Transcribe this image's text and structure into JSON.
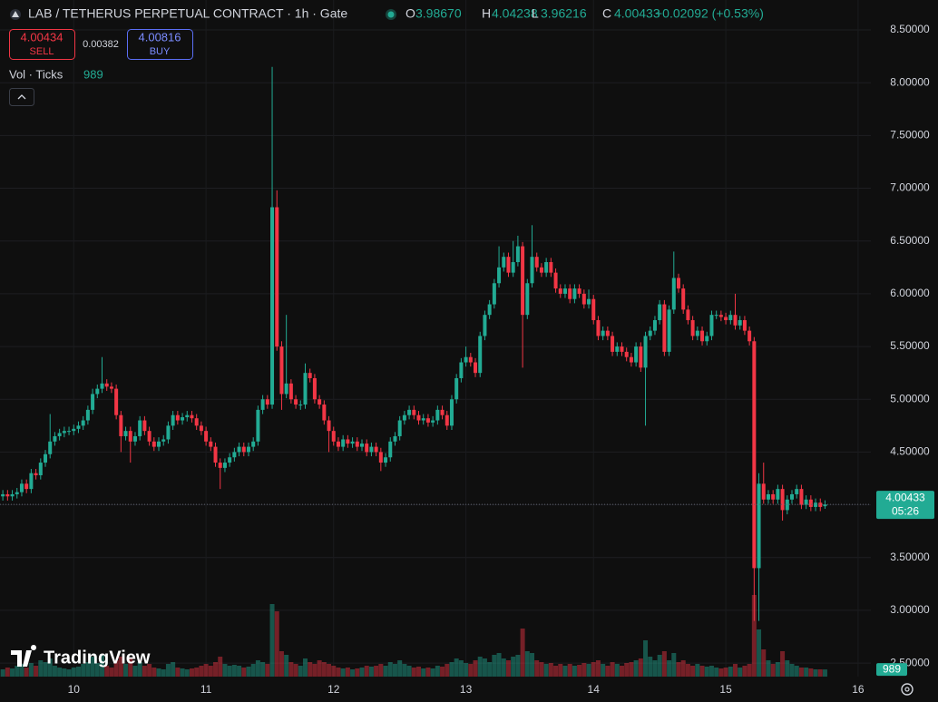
{
  "header": {
    "title": "LAB / TETHERUS PERPETUAL CONTRACT · 1h · Gate",
    "o_label": "O",
    "o_value": "3.98670",
    "h_label": "H",
    "h_value": "4.04238",
    "l_label": "L",
    "l_value": "3.96216",
    "c_label": "C",
    "c_value": "4.00433",
    "change": "+0.02092 (+0.53%)"
  },
  "trade": {
    "sell_price": "4.00434",
    "sell_label": "SELL",
    "spread": "0.00382",
    "buy_price": "4.00816",
    "buy_label": "BUY"
  },
  "indicator": {
    "label": "Vol · Ticks"
  },
  "branding": "TradingView",
  "chart_data": {
    "type": "candlestick",
    "up_color": "#22ab94",
    "down_color": "#f23645",
    "grid": true,
    "open": [
      4.08,
      4.1,
      4.08,
      4.1,
      4.12,
      4.2,
      4.15,
      4.3,
      4.28,
      4.4,
      4.48,
      4.6,
      4.65,
      4.68,
      4.7,
      4.7,
      4.72,
      4.75,
      4.8,
      4.9,
      5.05,
      5.1,
      5.15,
      5.12,
      5.1,
      4.85,
      4.65,
      4.7,
      4.6,
      4.65,
      4.8,
      4.7,
      4.6,
      4.55,
      4.6,
      4.62,
      4.75,
      4.85,
      4.8,
      4.83,
      4.85,
      4.82,
      4.75,
      4.7,
      4.6,
      4.55,
      4.4,
      4.35,
      4.4,
      4.45,
      4.5,
      4.55,
      4.5,
      4.55,
      4.6,
      4.9,
      5.0,
      4.95,
      6.82,
      5.5,
      5.05,
      5.15,
      5.0,
      4.95,
      4.95,
      5.25,
      5.2,
      5.0,
      4.95,
      4.8,
      4.7,
      4.6,
      4.55,
      4.62,
      4.58,
      4.6,
      4.55,
      4.58,
      4.5,
      4.55,
      4.5,
      4.4,
      4.45,
      4.6,
      4.65,
      4.8,
      4.85,
      4.9,
      4.85,
      4.8,
      4.82,
      4.78,
      4.8,
      4.9,
      4.85,
      4.75,
      5.0,
      5.2,
      5.35,
      5.4,
      5.35,
      5.25,
      5.6,
      5.8,
      5.9,
      6.1,
      6.25,
      6.35,
      6.2,
      6.3,
      6.45,
      5.8,
      6.1,
      6.35,
      6.25,
      6.2,
      6.3,
      6.2,
      6.05,
      6.0,
      6.05,
      5.95,
      6.05,
      6.0,
      5.9,
      5.95,
      5.75,
      5.6,
      5.65,
      5.6,
      5.45,
      5.5,
      5.45,
      5.4,
      5.35,
      5.5,
      5.3,
      5.6,
      5.65,
      5.75,
      5.9,
      5.45,
      5.85,
      6.15,
      6.05,
      5.85,
      5.75,
      5.6,
      5.65,
      5.55,
      5.6,
      5.8,
      5.8,
      5.78,
      5.75,
      5.8,
      5.7,
      5.75,
      5.65,
      5.55,
      3.4,
      4.2,
      4.05,
      4.1,
      4.05,
      4.15,
      3.95,
      4.05,
      4.1,
      4.15,
      4.0,
      4.05,
      3.98,
      4.02,
      3.9867
    ],
    "high": [
      4.14,
      4.14,
      4.14,
      4.16,
      4.24,
      4.24,
      4.34,
      4.34,
      4.44,
      4.52,
      4.86,
      4.69,
      4.72,
      4.74,
      4.74,
      4.76,
      4.79,
      4.84,
      4.94,
      5.1,
      5.14,
      5.4,
      5.19,
      5.16,
      5.14,
      4.89,
      4.74,
      4.74,
      4.69,
      4.84,
      4.84,
      4.74,
      4.64,
      4.64,
      4.66,
      4.79,
      4.89,
      4.89,
      4.87,
      4.89,
      4.89,
      4.86,
      4.79,
      4.74,
      4.64,
      4.59,
      4.44,
      4.44,
      4.49,
      4.54,
      4.59,
      4.59,
      4.59,
      4.64,
      4.94,
      5.04,
      5.04,
      8.15,
      6.98,
      5.55,
      5.8,
      5.19,
      5.04,
      4.99,
      5.34,
      5.29,
      5.24,
      5.04,
      4.99,
      4.84,
      4.74,
      4.64,
      4.66,
      4.66,
      4.64,
      4.64,
      4.62,
      4.62,
      4.59,
      4.59,
      4.54,
      4.49,
      4.64,
      4.69,
      4.84,
      4.89,
      4.94,
      4.94,
      4.89,
      4.86,
      4.86,
      4.84,
      4.94,
      4.94,
      4.89,
      5.04,
      5.24,
      5.39,
      5.5,
      5.44,
      5.39,
      5.64,
      5.84,
      5.94,
      6.14,
      6.45,
      6.39,
      6.39,
      6.5,
      6.55,
      6.49,
      6.14,
      6.65,
      6.39,
      6.29,
      6.34,
      6.34,
      6.24,
      6.09,
      6.09,
      6.09,
      6.09,
      6.09,
      6.04,
      6.04,
      5.99,
      5.79,
      5.69,
      5.69,
      5.64,
      5.54,
      5.54,
      5.49,
      5.44,
      5.54,
      5.54,
      5.64,
      5.69,
      5.79,
      5.94,
      5.94,
      5.89,
      6.4,
      6.19,
      6.09,
      5.89,
      5.79,
      5.69,
      5.69,
      5.64,
      5.84,
      5.84,
      5.84,
      5.82,
      5.84,
      6.0,
      5.79,
      5.79,
      5.69,
      5.59,
      4.3,
      4.4,
      4.14,
      4.14,
      4.19,
      4.19,
      4.09,
      4.14,
      4.19,
      4.19,
      4.09,
      4.09,
      4.06,
      4.06,
      4.04238
    ],
    "low": [
      4.04,
      4.04,
      4.04,
      4.06,
      4.08,
      4.11,
      4.11,
      4.24,
      4.24,
      4.36,
      4.44,
      4.56,
      4.61,
      4.64,
      4.66,
      4.66,
      4.68,
      4.71,
      4.76,
      4.86,
      5.01,
      5.06,
      5.08,
      5.06,
      4.81,
      4.5,
      4.61,
      4.4,
      4.56,
      4.61,
      4.66,
      4.56,
      4.51,
      4.51,
      4.56,
      4.58,
      4.71,
      4.76,
      4.76,
      4.79,
      4.78,
      4.71,
      4.66,
      4.56,
      4.51,
      4.36,
      4.15,
      4.31,
      4.36,
      4.41,
      4.46,
      4.46,
      4.46,
      4.51,
      4.56,
      4.86,
      4.91,
      4.91,
      5.46,
      4.9,
      5.01,
      4.96,
      4.91,
      4.9,
      4.91,
      5.16,
      4.96,
      4.91,
      4.76,
      4.5,
      4.56,
      4.51,
      4.51,
      4.54,
      4.54,
      4.51,
      4.51,
      4.46,
      4.46,
      4.46,
      4.32,
      4.36,
      4.41,
      4.56,
      4.61,
      4.76,
      4.81,
      4.81,
      4.76,
      4.76,
      4.74,
      4.74,
      4.76,
      4.81,
      4.71,
      4.71,
      4.96,
      5.16,
      5.31,
      5.31,
      5.21,
      5.21,
      5.56,
      5.76,
      5.86,
      6.06,
      6.21,
      6.16,
      6.16,
      6.26,
      5.3,
      5.76,
      6.06,
      6.21,
      6.16,
      6.16,
      6.16,
      6.01,
      5.96,
      5.96,
      5.91,
      5.91,
      5.96,
      5.86,
      5.86,
      5.71,
      5.56,
      5.56,
      5.56,
      5.41,
      5.41,
      5.41,
      5.36,
      5.31,
      5.31,
      5.26,
      4.75,
      5.56,
      5.61,
      5.71,
      5.41,
      5.41,
      5.81,
      6.01,
      5.81,
      5.71,
      5.56,
      5.56,
      5.51,
      5.51,
      5.56,
      5.76,
      5.74,
      5.71,
      5.71,
      5.66,
      5.66,
      5.61,
      5.51,
      2.9,
      2.9,
      4.01,
      4.01,
      4.01,
      4.01,
      3.85,
      3.91,
      4.01,
      4.06,
      3.96,
      3.96,
      3.94,
      3.94,
      3.94,
      3.96216
    ],
    "close": [
      4.1,
      4.08,
      4.1,
      4.12,
      4.2,
      4.15,
      4.3,
      4.28,
      4.4,
      4.48,
      4.6,
      4.65,
      4.68,
      4.7,
      4.7,
      4.72,
      4.75,
      4.8,
      4.9,
      5.05,
      5.1,
      5.15,
      5.12,
      5.1,
      4.85,
      4.65,
      4.7,
      4.6,
      4.65,
      4.8,
      4.7,
      4.6,
      4.55,
      4.6,
      4.62,
      4.75,
      4.85,
      4.8,
      4.83,
      4.85,
      4.82,
      4.75,
      4.7,
      4.6,
      4.55,
      4.4,
      4.35,
      4.4,
      4.45,
      4.5,
      4.55,
      4.5,
      4.55,
      4.6,
      4.9,
      5.0,
      4.95,
      6.82,
      5.5,
      5.05,
      5.15,
      5.0,
      4.95,
      4.95,
      5.25,
      5.2,
      5.0,
      4.95,
      4.8,
      4.7,
      4.6,
      4.55,
      4.62,
      4.58,
      4.6,
      4.55,
      4.58,
      4.5,
      4.55,
      4.5,
      4.4,
      4.45,
      4.6,
      4.65,
      4.8,
      4.85,
      4.9,
      4.85,
      4.8,
      4.82,
      4.78,
      4.8,
      4.9,
      4.85,
      4.75,
      5.0,
      5.2,
      5.35,
      5.4,
      5.35,
      5.25,
      5.6,
      5.8,
      5.9,
      6.1,
      6.25,
      6.35,
      6.2,
      6.3,
      6.45,
      5.8,
      6.1,
      6.35,
      6.25,
      6.2,
      6.3,
      6.2,
      6.05,
      6.0,
      6.05,
      5.95,
      6.05,
      6.0,
      5.9,
      5.95,
      5.75,
      5.6,
      5.65,
      5.6,
      5.45,
      5.5,
      5.45,
      5.4,
      5.35,
      5.5,
      5.3,
      5.6,
      5.65,
      5.75,
      5.9,
      5.45,
      5.85,
      6.15,
      6.05,
      5.85,
      5.75,
      5.6,
      5.65,
      5.55,
      5.6,
      5.8,
      5.8,
      5.78,
      5.75,
      5.8,
      5.7,
      5.75,
      5.65,
      5.55,
      3.4,
      4.2,
      4.05,
      4.1,
      4.05,
      4.15,
      3.95,
      4.05,
      4.1,
      4.15,
      4.0,
      4.05,
      3.98,
      4.02,
      3.98,
      4.00433
    ],
    "volume": [
      1000,
      1250,
      1125,
      1500,
      1750,
      1250,
      1875,
      1500,
      2250,
      2000,
      2500,
      1500,
      1250,
      1125,
      1000,
      1250,
      1375,
      1750,
      2000,
      2750,
      1875,
      3125,
      1500,
      1250,
      2250,
      2750,
      1750,
      2500,
      1500,
      2000,
      1500,
      1750,
      1250,
      1125,
      1000,
      1750,
      2000,
      1250,
      1125,
      1000,
      1125,
      1250,
      1500,
      1750,
      1500,
      2000,
      2750,
      1750,
      1500,
      1625,
      1500,
      1250,
      1375,
      1750,
      2250,
      2000,
      1750,
      10000,
      9000,
      3500,
      3000,
      2000,
      1750,
      1500,
      2500,
      2000,
      1750,
      2250,
      2000,
      1750,
      1500,
      1250,
      1125,
      1250,
      1000,
      1125,
      1250,
      1500,
      1375,
      1500,
      1750,
      1500,
      2000,
      1750,
      2250,
      1750,
      1500,
      1250,
      1375,
      1125,
      1250,
      1125,
      1500,
      1375,
      1750,
      2000,
      2500,
      2250,
      1875,
      1750,
      2250,
      2750,
      2500,
      2000,
      3000,
      3250,
      2500,
      2250,
      2750,
      3000,
      6625,
      3500,
      3250,
      2250,
      2000,
      1750,
      1875,
      1500,
      1750,
      1500,
      1750,
      1500,
      1625,
      1875,
      1750,
      2000,
      2250,
      1750,
      1500,
      2000,
      1750,
      1500,
      1875,
      2000,
      2250,
      2500,
      5000,
      2750,
      2250,
      3000,
      3500,
      2250,
      3250,
      2000,
      2250,
      1750,
      1500,
      1750,
      1500,
      1375,
      1500,
      1250,
      1125,
      1250,
      1375,
      1750,
      1250,
      1500,
      1750,
      11250,
      6500,
      3750,
      2250,
      1750,
      2000,
      3500,
      2250,
      1750,
      1500,
      1250,
      1250,
      1125,
      1000,
      1000,
      989
    ],
    "countdown": "05:26",
    "ylim": [
      2.372,
      8.784
    ],
    "yticks": [
      {
        "value": 2.5,
        "label": "2.50000"
      },
      {
        "value": 3,
        "label": "3.00000"
      },
      {
        "value": 3.5,
        "label": "3.50000"
      },
      {
        "value": 4,
        "label": "4.00000"
      },
      {
        "value": 4.5,
        "label": "4.50000"
      },
      {
        "value": 5,
        "label": "5.00000"
      },
      {
        "value": 5.5,
        "label": "5.50000"
      },
      {
        "value": 6,
        "label": "6.00000"
      },
      {
        "value": 6.5,
        "label": "6.50000"
      },
      {
        "value": 7,
        "label": "7.00000"
      },
      {
        "value": 7.5,
        "label": "7.50000"
      },
      {
        "value": 8,
        "label": "8.00000"
      },
      {
        "value": 8.5,
        "label": "8.50000"
      }
    ],
    "xlim": [
      -0.6,
      183.7
    ],
    "xticks": [
      {
        "value": 15,
        "label": "10"
      },
      {
        "value": 43,
        "label": "11"
      },
      {
        "value": 70,
        "label": "12"
      },
      {
        "value": 98,
        "label": "13"
      },
      {
        "value": 125,
        "label": "14"
      },
      {
        "value": 153,
        "label": "15"
      },
      {
        "value": 181,
        "label": "16"
      }
    ]
  }
}
